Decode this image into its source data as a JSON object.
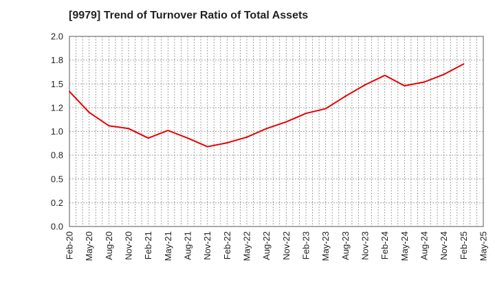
{
  "chart_data": {
    "type": "line",
    "title": "[9979]  Trend of Turnover Ratio of Total Assets",
    "xlabel": "",
    "ylabel": "",
    "x": [
      "Feb-20",
      "May-20",
      "Aug-20",
      "Nov-20",
      "Feb-21",
      "May-21",
      "Aug-21",
      "Nov-21",
      "Feb-22",
      "May-22",
      "Aug-22",
      "Nov-22",
      "Feb-23",
      "May-23",
      "Aug-23",
      "Nov-23",
      "Feb-24",
      "May-24",
      "Aug-24",
      "Nov-24",
      "Feb-25",
      "May-25"
    ],
    "series": [
      {
        "name": "",
        "color": "#e60000",
        "values": [
          1.42,
          1.2,
          1.06,
          1.03,
          0.93,
          1.01,
          0.93,
          0.84,
          0.88,
          0.94,
          1.03,
          1.1,
          1.19,
          1.24,
          1.37,
          1.49,
          1.59,
          1.48,
          1.52,
          1.6,
          1.71,
          null
        ]
      }
    ],
    "ylim": [
      0,
      2.0
    ],
    "yticks": [
      0.0,
      0.25,
      0.5,
      0.75,
      1.0,
      1.25,
      1.5,
      1.75,
      2.0
    ],
    "ytick_labels": [
      "0.0",
      "0.2",
      "0.5",
      "0.8",
      "1.0",
      "1.2",
      "1.5",
      "1.8",
      "2.0"
    ],
    "grid": true,
    "legend": "none"
  }
}
